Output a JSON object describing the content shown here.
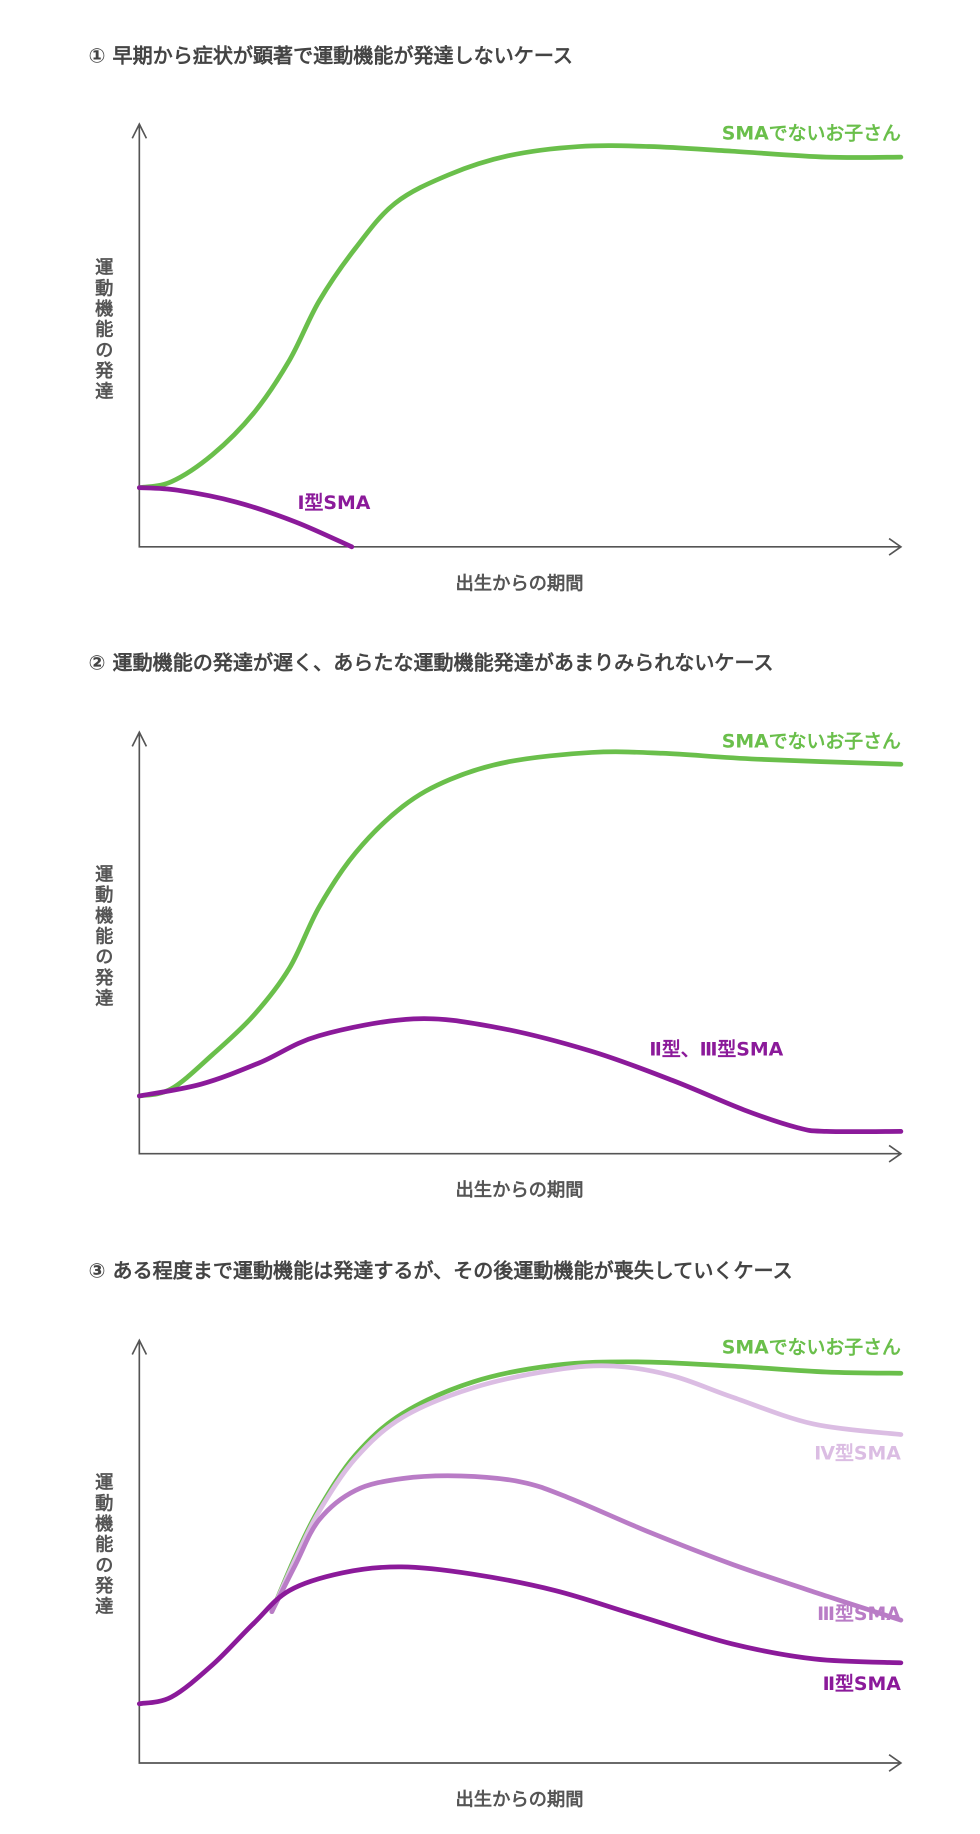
{
  "chart_data": [
    {
      "type": "line",
      "title": "① 早期から症状が顕著で運動機能が発達しないケース",
      "xlabel": "出生からの期間",
      "ylabel": "運動機能の発達",
      "xlim": [
        0,
        100
      ],
      "ylim": [
        0,
        100
      ],
      "grid": false,
      "ticks": false,
      "series": [
        {
          "name": "SMAでないお子さん",
          "color": "#6abf4b",
          "points": [
            [
              0,
              14
            ],
            [
              4.2,
              15.4
            ],
            [
              9.6,
              21.8
            ],
            [
              15,
              31.6
            ],
            [
              19.7,
              44.1
            ],
            [
              23.6,
              58.1
            ],
            [
              28.4,
              70.7
            ],
            [
              33.6,
              81.3
            ],
            [
              40.6,
              88
            ],
            [
              48.4,
              92.5
            ],
            [
              57.7,
              94.7
            ],
            [
              67,
              94.7
            ],
            [
              77.8,
              93.6
            ],
            [
              90.2,
              92.2
            ],
            [
              100,
              92.2
            ]
          ]
        },
        {
          "name": "Ⅰ型SMA",
          "color": "#8b1a9a",
          "points": [
            [
              0,
              14
            ],
            [
              5,
              13.4
            ],
            [
              12.7,
              10.6
            ],
            [
              20.5,
              5.9
            ],
            [
              27.9,
              0
            ]
          ]
        }
      ]
    },
    {
      "type": "line",
      "title": "② 運動機能の発達が遅く、あらたな運動機能発達があまりみられないケース",
      "xlabel": "出生からの期間",
      "ylabel": "運動機能の発達",
      "xlim": [
        0,
        100
      ],
      "ylim": [
        0,
        100
      ],
      "grid": false,
      "ticks": false,
      "series": [
        {
          "name": "SMAでないお子さん",
          "color": "#6abf4b",
          "points": [
            [
              0,
              13.7
            ],
            [
              4.2,
              15.4
            ],
            [
              9.6,
              23.5
            ],
            [
              15,
              32.8
            ],
            [
              19.7,
              44
            ],
            [
              23.6,
              58.5
            ],
            [
              28.4,
              71.4
            ],
            [
              34.6,
              82.4
            ],
            [
              40.8,
              88.8
            ],
            [
              48.5,
              93
            ],
            [
              59.4,
              95.2
            ],
            [
              68.7,
              95
            ],
            [
              81.1,
              93.6
            ],
            [
              100,
              92.4
            ]
          ]
        },
        {
          "name": "Ⅱ型、Ⅲ型SMA",
          "color": "#8b1a9a",
          "points": [
            [
              0,
              13.7
            ],
            [
              8.1,
              16.5
            ],
            [
              15.8,
              21.6
            ],
            [
              23.6,
              28
            ],
            [
              36,
              32
            ],
            [
              46.8,
              30
            ],
            [
              59.2,
              24.4
            ],
            [
              70,
              17.4
            ],
            [
              79.4,
              10.4
            ],
            [
              86.4,
              6.2
            ],
            [
              90.2,
              5.3
            ],
            [
              100,
              5.3
            ]
          ]
        }
      ]
    },
    {
      "type": "line",
      "title": "③ ある程度まで運動機能は発達するが、その後運動機能が喪失していくケース",
      "xlabel": "出生からの期間",
      "ylabel": "運動機能の発達",
      "xlim": [
        0,
        100
      ],
      "ylim": [
        0,
        100
      ],
      "grid": false,
      "ticks": false,
      "series": [
        {
          "name": "SMAでないお子さん",
          "color": "#6abf4b",
          "points": [
            [
              17.4,
              35.8
            ],
            [
              20.5,
              48.9
            ],
            [
              23.6,
              60.1
            ],
            [
              28.4,
              72.9
            ],
            [
              34.6,
              82.7
            ],
            [
              43.9,
              90.2
            ],
            [
              54.6,
              94.1
            ],
            [
              65.4,
              94.9
            ],
            [
              77.8,
              93.9
            ],
            [
              90.2,
              92.5
            ],
            [
              100,
              92.2
            ]
          ]
        },
        {
          "name": "Ⅳ型SMA",
          "color": "#dbbde3",
          "points": [
            [
              17.4,
              35.8
            ],
            [
              20.5,
              48.3
            ],
            [
              23.6,
              59.5
            ],
            [
              28.4,
              72.1
            ],
            [
              34.6,
              81.8
            ],
            [
              43.9,
              88.8
            ],
            [
              54.6,
              93
            ],
            [
              62.3,
              93.9
            ],
            [
              70,
              91.6
            ],
            [
              77.8,
              86.6
            ],
            [
              88.5,
              80.2
            ],
            [
              100,
              77.7
            ]
          ]
        },
        {
          "name": "Ⅲ型SMA",
          "color": "#b97cc6",
          "points": [
            [
              17.4,
              35.8
            ],
            [
              20.5,
              46.9
            ],
            [
              23.6,
              57.5
            ],
            [
              28.4,
              64.5
            ],
            [
              34.6,
              67.3
            ],
            [
              42.3,
              67.9
            ],
            [
              50.1,
              66.5
            ],
            [
              56.3,
              62.8
            ],
            [
              67.1,
              54.5
            ],
            [
              78,
              46.9
            ],
            [
              90.4,
              39.4
            ],
            [
              100,
              33.8
            ]
          ]
        },
        {
          "name": "Ⅱ型SMA",
          "color": "#8b1a9a",
          "points": [
            [
              0,
              14
            ],
            [
              4.2,
              15.6
            ],
            [
              9.6,
              23.2
            ],
            [
              15,
              33
            ],
            [
              19.7,
              40.8
            ],
            [
              26.7,
              45
            ],
            [
              34.4,
              46.4
            ],
            [
              43.7,
              44.7
            ],
            [
              54.6,
              40.8
            ],
            [
              65.4,
              34.9
            ],
            [
              77.8,
              28.2
            ],
            [
              88.7,
              24.6
            ],
            [
              100,
              23.7
            ]
          ]
        }
      ]
    }
  ]
}
